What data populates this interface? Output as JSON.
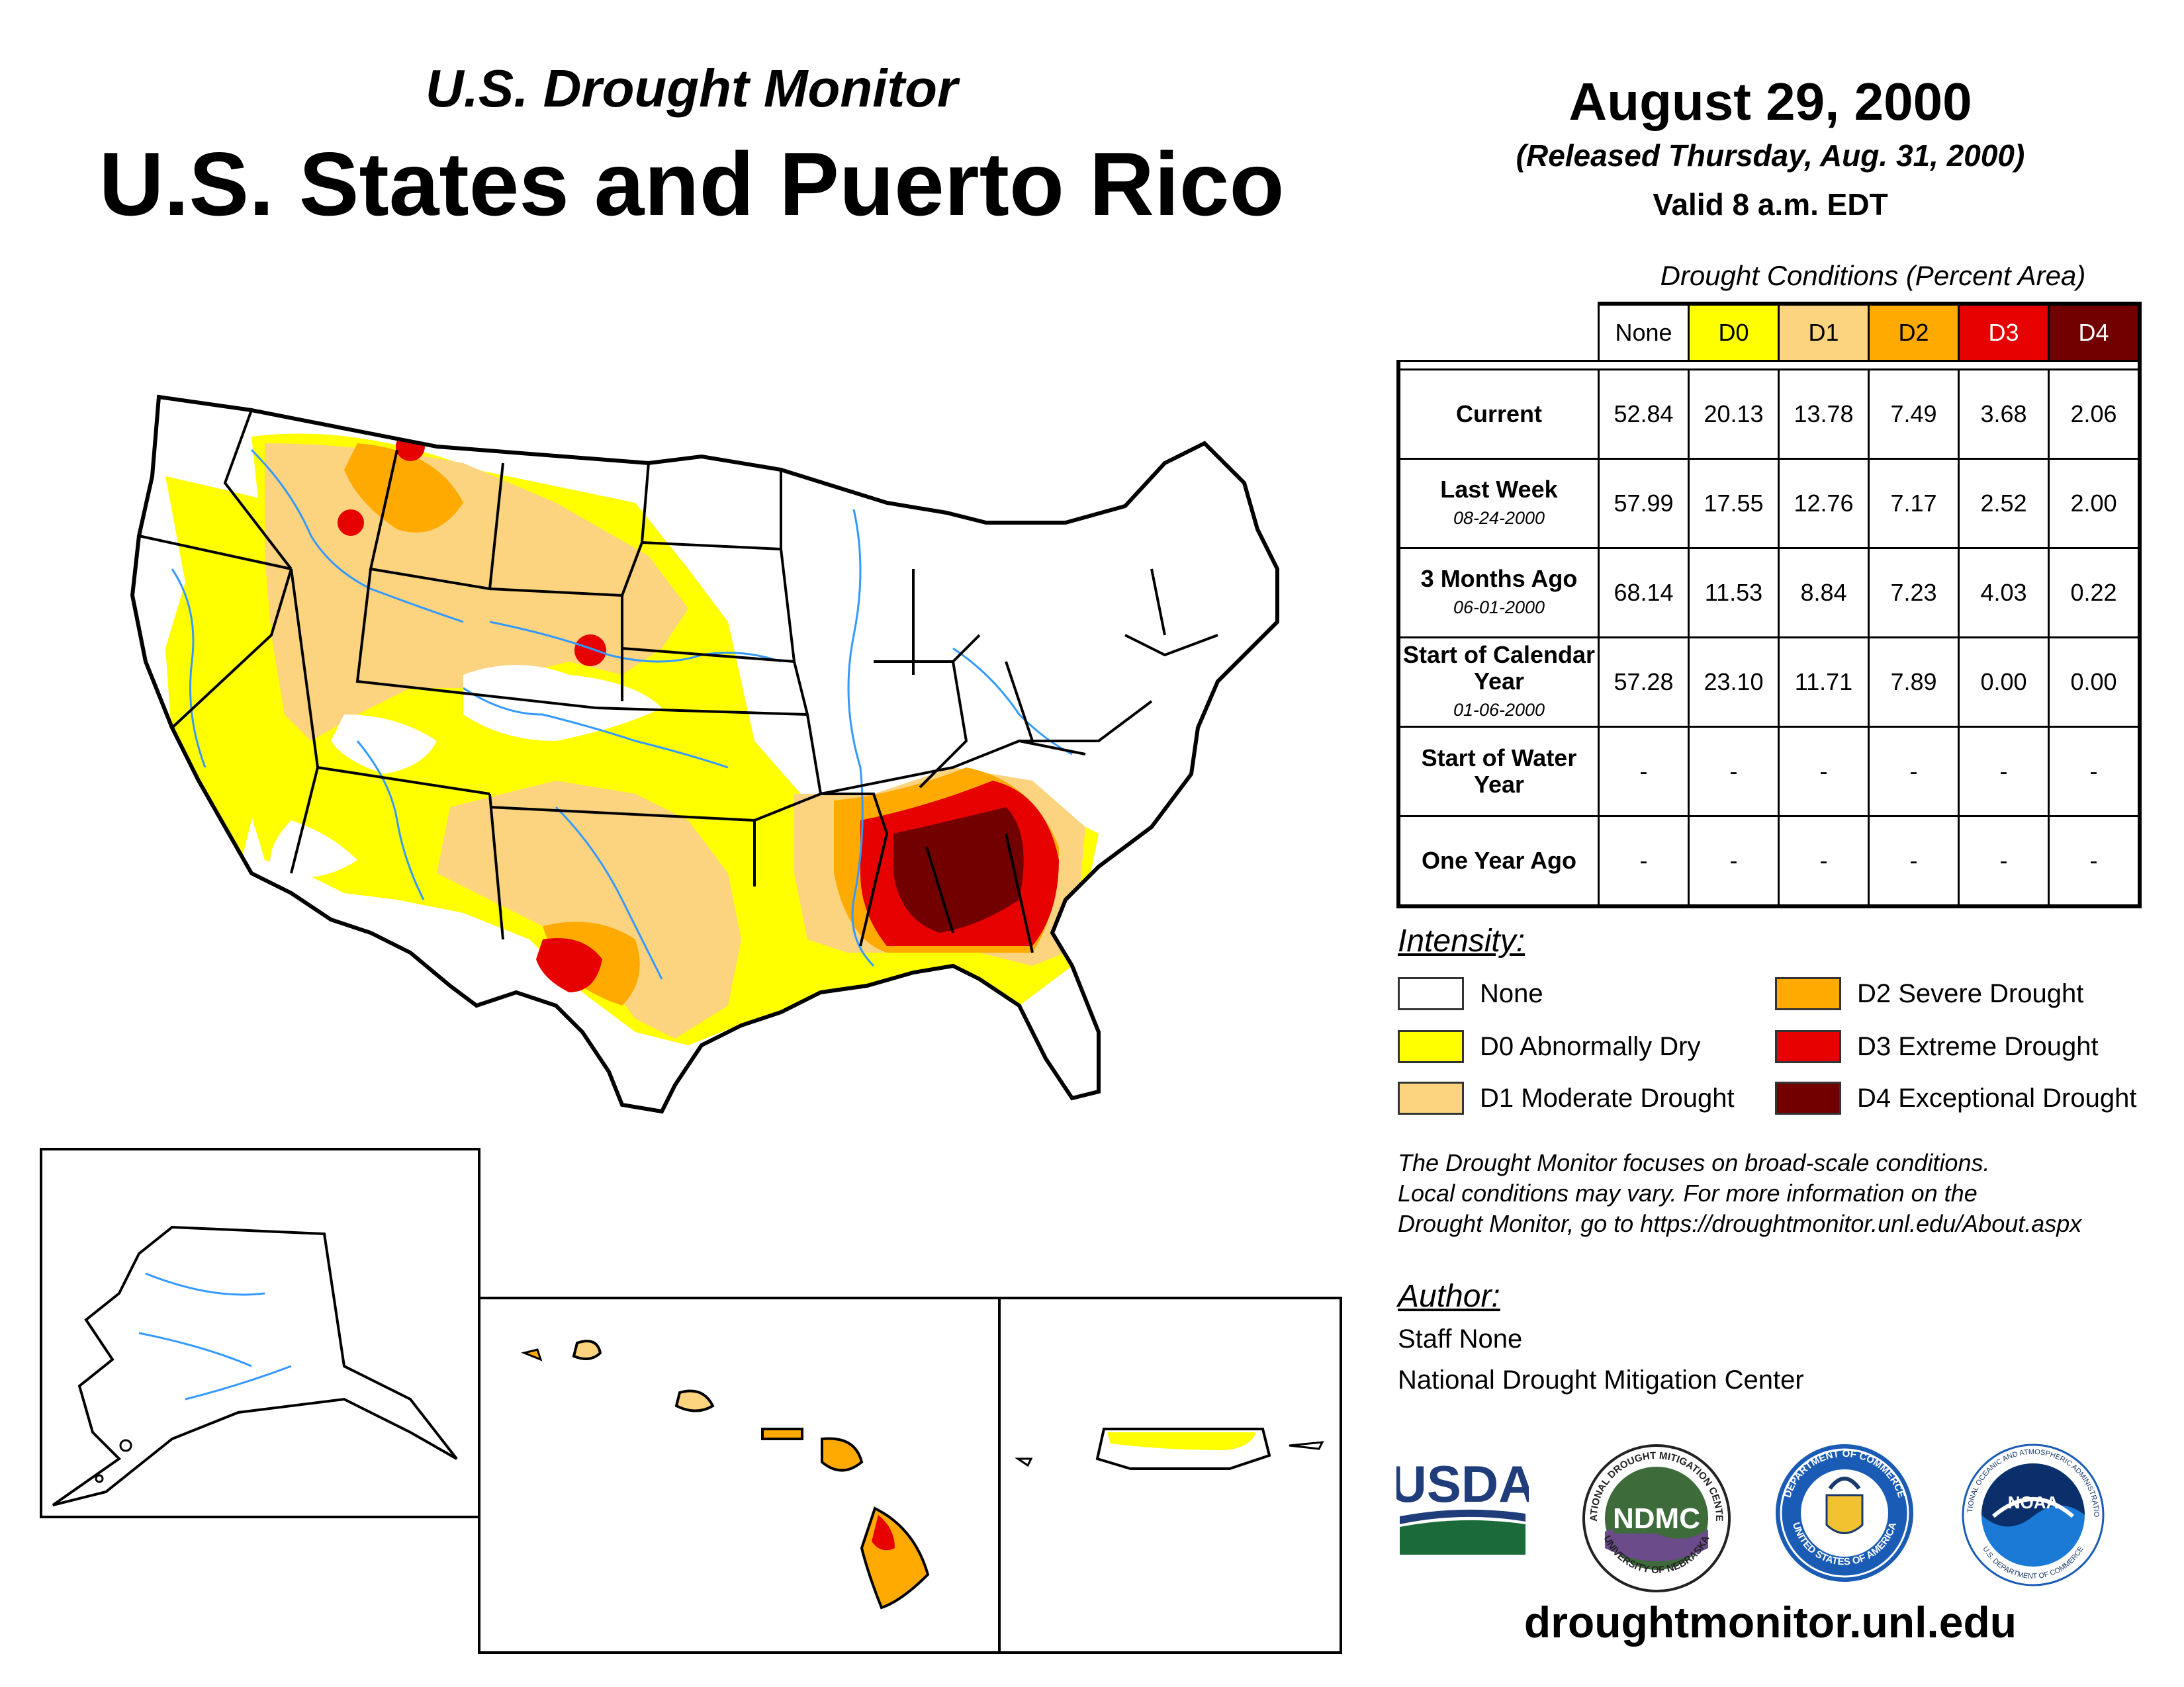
{
  "header": {
    "subtitle": "U.S. Drought Monitor",
    "title": "U.S. States and Puerto Rico",
    "date": "August 29, 2000",
    "released": "(Released Thursday, Aug. 31, 2000)",
    "valid": "Valid 8 a.m. EDT"
  },
  "table": {
    "caption": "Drought Conditions (Percent Area)",
    "columns": [
      "None",
      "D0",
      "D1",
      "D2",
      "D3",
      "D4"
    ],
    "column_colors": [
      "#ffffff",
      "#ffff00",
      "#fcd37f",
      "#ffaa00",
      "#e60000",
      "#730000"
    ],
    "rows": [
      {
        "label": "Current",
        "sub": "",
        "values": [
          "52.84",
          "20.13",
          "13.78",
          "7.49",
          "3.68",
          "2.06"
        ]
      },
      {
        "label": "Last Week",
        "sub": "08-24-2000",
        "values": [
          "57.99",
          "17.55",
          "12.76",
          "7.17",
          "2.52",
          "2.00"
        ]
      },
      {
        "label": "3 Months Ago",
        "sub": "06-01-2000",
        "values": [
          "68.14",
          "11.53",
          "8.84",
          "7.23",
          "4.03",
          "0.22"
        ]
      },
      {
        "label": "Start of Calendar Year",
        "sub": "01-06-2000",
        "values": [
          "57.28",
          "23.10",
          "11.71",
          "7.89",
          "0.00",
          "0.00"
        ]
      },
      {
        "label": "Start of Water Year",
        "sub": "",
        "values": [
          "-",
          "-",
          "-",
          "-",
          "-",
          "-"
        ]
      },
      {
        "label": "One Year Ago",
        "sub": "",
        "values": [
          "-",
          "-",
          "-",
          "-",
          "-",
          "-"
        ]
      }
    ]
  },
  "legend": {
    "heading": "Intensity:",
    "items": [
      {
        "label": "None",
        "color": "#ffffff"
      },
      {
        "label": "D0 Abnormally Dry",
        "color": "#ffff00"
      },
      {
        "label": "D1 Moderate Drought",
        "color": "#fcd37f"
      },
      {
        "label": "D2 Severe Drought",
        "color": "#ffaa00"
      },
      {
        "label": "D3 Extreme Drought",
        "color": "#e60000"
      },
      {
        "label": "D4 Exceptional Drought",
        "color": "#730000"
      }
    ]
  },
  "note": {
    "line1": "The Drought Monitor focuses on broad-scale conditions.",
    "line2": "Local conditions may vary. For more information on the",
    "line3": "Drought Monitor, go to https://droughtmonitor.unl.edu/About.aspx"
  },
  "author": {
    "heading": "Author:",
    "name": "Staff None",
    "org": "National Drought Mitigation Center"
  },
  "logos": {
    "usda": "USDA",
    "ndmc": "NDMC",
    "ndmc_ring_top": "NATIONAL DROUGHT MITIGATION CENTER",
    "ndmc_ring_bottom": "UNIVERSITY OF NEBRASKA",
    "commerce_ring_top": "DEPARTMENT OF COMMERCE",
    "commerce_ring_bottom": "UNITED STATES OF AMERICA",
    "noaa": "NOAA",
    "noaa_ring_top": "NATIONAL OCEANIC AND ATMOSPHERIC ADMINISTRATION",
    "noaa_ring_bottom": "U.S. DEPARTMENT OF COMMERCE"
  },
  "footer": {
    "site": "droughtmonitor.unl.edu"
  },
  "map": {
    "river_color": "#3399ff",
    "border_color": "#000000"
  }
}
